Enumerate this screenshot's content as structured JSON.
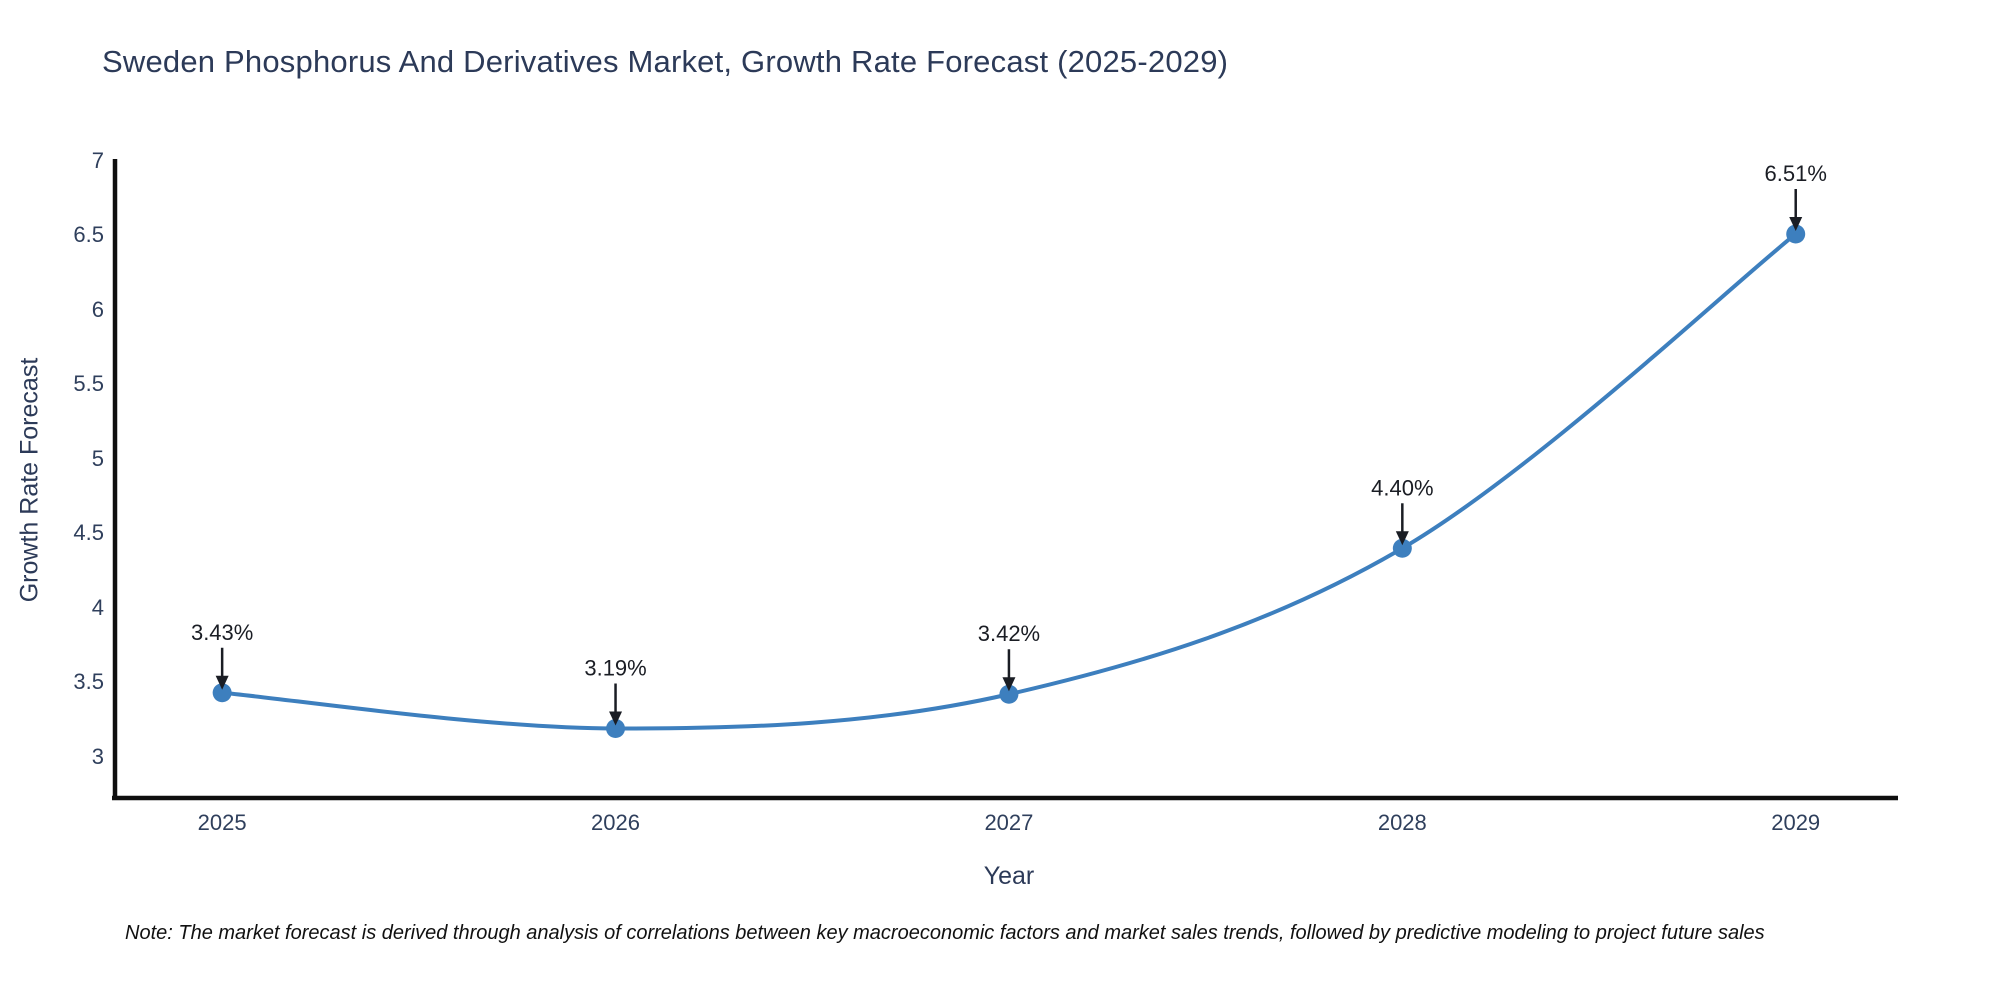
{
  "chart_data": {
    "type": "line",
    "title": "Sweden Phosphorus And Derivatives Market, Growth Rate Forecast (2025-2029)",
    "xlabel": "Year",
    "ylabel": "Growth Rate Forecast",
    "categories": [
      "2025",
      "2026",
      "2027",
      "2028",
      "2029"
    ],
    "x": [
      2025,
      2026,
      2027,
      2028,
      2029
    ],
    "series": [
      {
        "name": "Growth Rate Forecast",
        "values": [
          3.43,
          3.19,
          3.42,
          4.4,
          6.51
        ]
      }
    ],
    "point_labels": [
      "3.43%",
      "3.19%",
      "3.42%",
      "4.40%",
      "6.51%"
    ],
    "yticks": [
      3,
      3.5,
      4,
      4.5,
      5,
      5.5,
      6,
      6.5,
      7
    ],
    "ylim": [
      2.71,
      7.0
    ],
    "xlim": [
      2024.72,
      2029.26
    ],
    "grid": false,
    "legend_position": "none",
    "curve": "spline",
    "line_color": "#3d7fbe",
    "marker_color": "#3d7fbe",
    "axis_color": "#0f0f0f",
    "tick_color": "#2f3f5c",
    "title_color": "#2c3a58",
    "annotation_color": "#1a1d24",
    "note": "Note: The market forecast is derived through analysis of correlations between key macroeconomic factors and market sales trends, followed by predictive modeling to project future sales"
  }
}
